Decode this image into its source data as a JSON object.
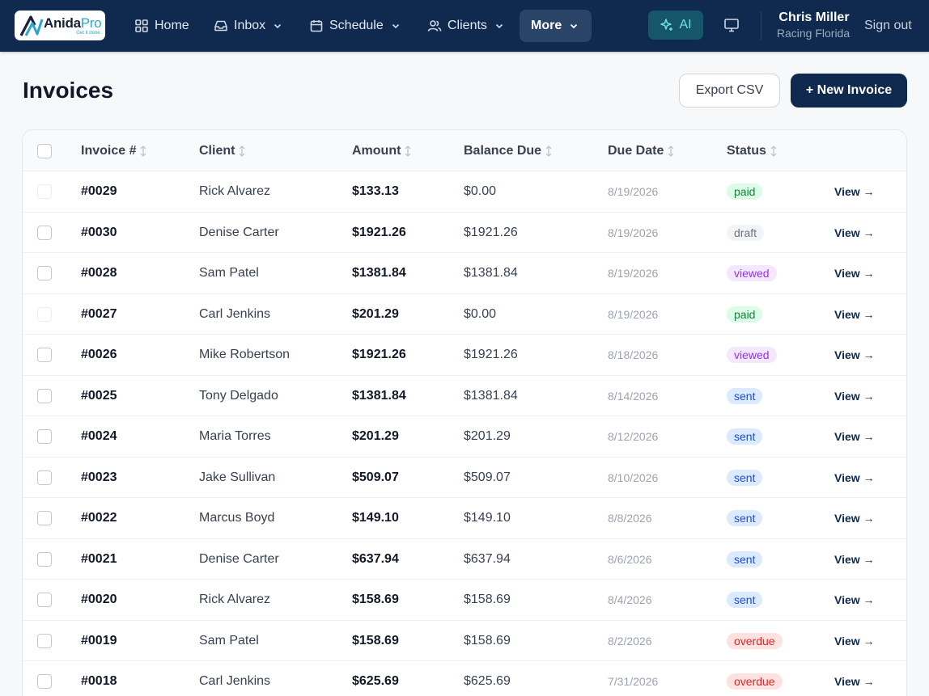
{
  "nav": {
    "logo_name_a": "Anida",
    "logo_name_b": "Pro",
    "logo_tagline": "Get it done.",
    "items": [
      {
        "label": "Home",
        "icon": "grid-icon"
      },
      {
        "label": "Inbox",
        "icon": "inbox-icon"
      },
      {
        "label": "Schedule",
        "icon": "calendar-icon"
      },
      {
        "label": "Clients",
        "icon": "users-icon"
      },
      {
        "label": "More",
        "icon": "chevron-down-icon"
      }
    ],
    "ai_label": "AI",
    "user_name": "Chris Miller",
    "user_org": "Racing Florida",
    "signout": "Sign out"
  },
  "page": {
    "title": "Invoices",
    "export_label": "Export CSV",
    "new_label": "+ New Invoice"
  },
  "table": {
    "columns": [
      "Invoice #",
      "Client",
      "Amount",
      "Balance Due",
      "Due Date",
      "Status"
    ],
    "view_label": "View →",
    "rows": [
      {
        "num": "#0029",
        "client": "Rick Alvarez",
        "amount": "$133.13",
        "balance": "$0.00",
        "due": "8/19/2026",
        "status": "paid"
      },
      {
        "num": "#0030",
        "client": "Denise Carter",
        "amount": "$1921.26",
        "balance": "$1921.26",
        "due": "8/19/2026",
        "status": "draft"
      },
      {
        "num": "#0028",
        "client": "Sam Patel",
        "amount": "$1381.84",
        "balance": "$1381.84",
        "due": "8/19/2026",
        "status": "viewed"
      },
      {
        "num": "#0027",
        "client": "Carl Jenkins",
        "amount": "$201.29",
        "balance": "$0.00",
        "due": "8/19/2026",
        "status": "paid"
      },
      {
        "num": "#0026",
        "client": "Mike Robertson",
        "amount": "$1921.26",
        "balance": "$1921.26",
        "due": "8/18/2026",
        "status": "viewed"
      },
      {
        "num": "#0025",
        "client": "Tony Delgado",
        "amount": "$1381.84",
        "balance": "$1381.84",
        "due": "8/14/2026",
        "status": "sent"
      },
      {
        "num": "#0024",
        "client": "Maria Torres",
        "amount": "$201.29",
        "balance": "$201.29",
        "due": "8/12/2026",
        "status": "sent"
      },
      {
        "num": "#0023",
        "client": "Jake Sullivan",
        "amount": "$509.07",
        "balance": "$509.07",
        "due": "8/10/2026",
        "status": "sent"
      },
      {
        "num": "#0022",
        "client": "Marcus Boyd",
        "amount": "$149.10",
        "balance": "$149.10",
        "due": "8/8/2026",
        "status": "sent"
      },
      {
        "num": "#0021",
        "client": "Denise Carter",
        "amount": "$637.94",
        "balance": "$637.94",
        "due": "8/6/2026",
        "status": "sent"
      },
      {
        "num": "#0020",
        "client": "Rick Alvarez",
        "amount": "$158.69",
        "balance": "$158.69",
        "due": "8/4/2026",
        "status": "sent"
      },
      {
        "num": "#0019",
        "client": "Sam Patel",
        "amount": "$158.69",
        "balance": "$158.69",
        "due": "8/2/2026",
        "status": "overdue"
      },
      {
        "num": "#0018",
        "client": "Carl Jenkins",
        "amount": "$625.69",
        "balance": "$625.69",
        "due": "7/31/2026",
        "status": "overdue"
      }
    ]
  }
}
